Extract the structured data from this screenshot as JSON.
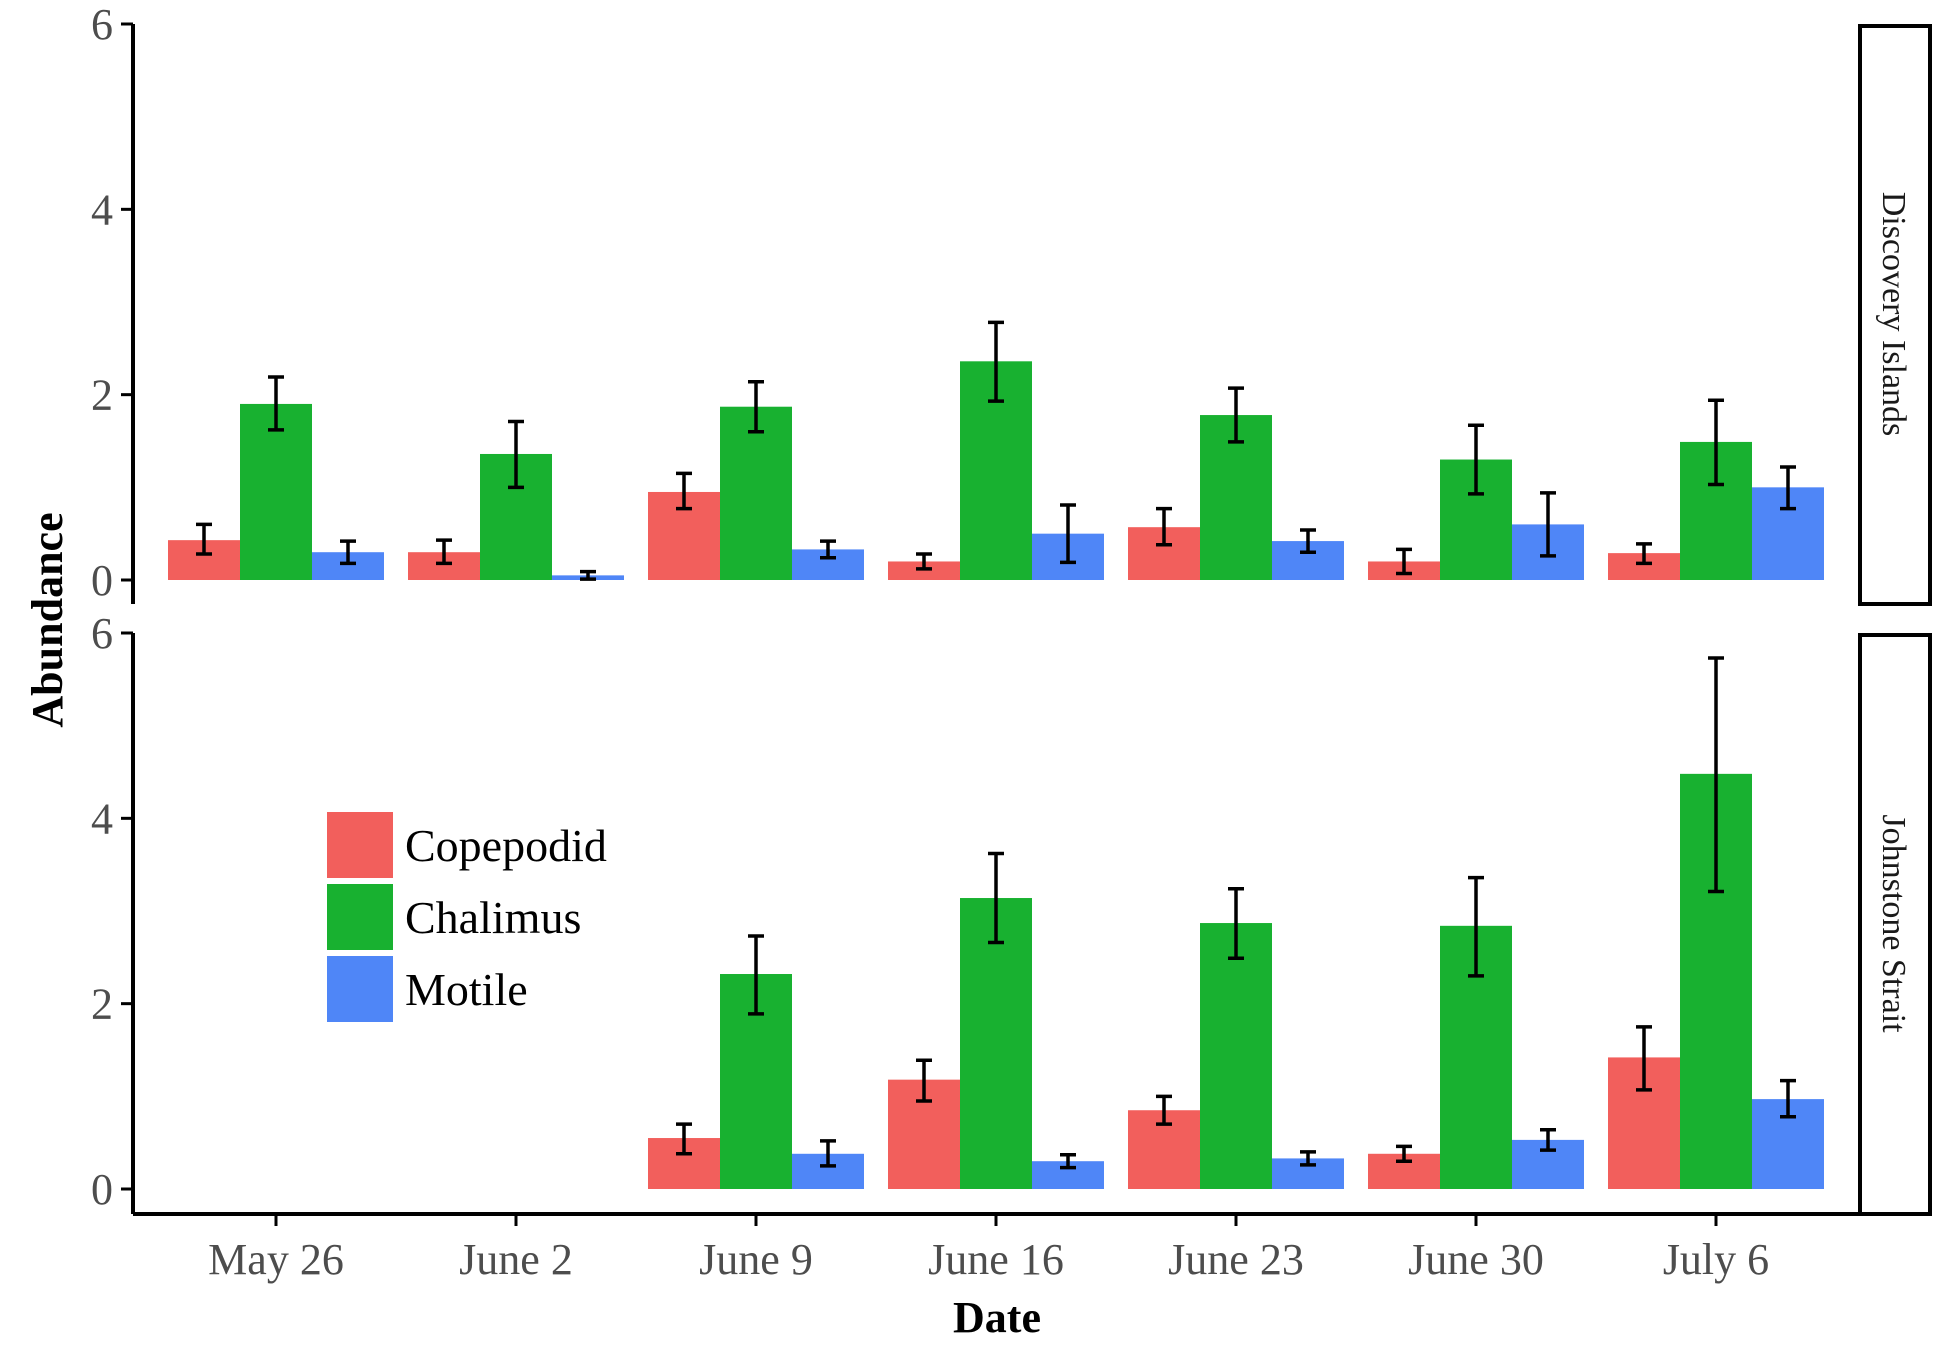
{
  "chart_data": {
    "type": "bar",
    "xlabel": "Date",
    "ylabel": "Abundance",
    "ylim": [
      0,
      6
    ],
    "yticks": [
      "0",
      "2",
      "4",
      "6"
    ],
    "categories": [
      "May 26",
      "June 2",
      "June 9",
      "June 16",
      "June 23",
      "June 30",
      "July 6"
    ],
    "legend": {
      "placement": "inside-lower-panel-left",
      "entries": [
        "Copepodid",
        "Chalimus",
        "Motile"
      ]
    },
    "colors": {
      "Copepodid": "#F25F5C",
      "Chalimus": "#18B130",
      "Motile": "#4F86F7"
    },
    "panels": [
      {
        "label": "Discovery Islands",
        "series": [
          {
            "name": "Copepodid",
            "values": [
              0.43,
              0.3,
              0.95,
              0.2,
              0.57,
              0.2,
              0.29
            ],
            "err_low": [
              0.28,
              0.18,
              0.77,
              0.12,
              0.38,
              0.07,
              0.18
            ],
            "err_high": [
              0.6,
              0.43,
              1.15,
              0.28,
              0.77,
              0.33,
              0.39
            ]
          },
          {
            "name": "Chalimus",
            "values": [
              1.9,
              1.36,
              1.87,
              2.36,
              1.78,
              1.3,
              1.49
            ],
            "err_low": [
              1.62,
              1.0,
              1.6,
              1.93,
              1.49,
              0.93,
              1.03
            ],
            "err_high": [
              2.19,
              1.71,
              2.14,
              2.78,
              2.07,
              1.67,
              1.94
            ]
          },
          {
            "name": "Motile",
            "values": [
              0.3,
              0.05,
              0.33,
              0.5,
              0.42,
              0.6,
              1.0
            ],
            "err_low": [
              0.18,
              0.01,
              0.24,
              0.19,
              0.3,
              0.26,
              0.77
            ],
            "err_high": [
              0.42,
              0.09,
              0.42,
              0.81,
              0.54,
              0.94,
              1.22
            ]
          }
        ]
      },
      {
        "label": "Johnstone Strait",
        "series": [
          {
            "name": "Copepodid",
            "values": [
              null,
              null,
              0.55,
              1.18,
              0.85,
              0.38,
              1.42
            ],
            "err_low": [
              null,
              null,
              0.38,
              0.95,
              0.7,
              0.3,
              1.07
            ],
            "err_high": [
              null,
              null,
              0.7,
              1.39,
              1.0,
              0.46,
              1.75
            ]
          },
          {
            "name": "Chalimus",
            "values": [
              null,
              null,
              2.32,
              3.14,
              2.87,
              2.84,
              4.48
            ],
            "err_low": [
              null,
              null,
              1.89,
              2.66,
              2.49,
              2.3,
              3.21
            ],
            "err_high": [
              null,
              null,
              2.73,
              3.62,
              3.24,
              3.36,
              5.73
            ]
          },
          {
            "name": "Motile",
            "values": [
              null,
              null,
              0.38,
              0.3,
              0.33,
              0.53,
              0.97
            ],
            "err_low": [
              null,
              null,
              0.25,
              0.23,
              0.26,
              0.42,
              0.78
            ],
            "err_high": [
              null,
              null,
              0.52,
              0.37,
              0.4,
              0.64,
              1.17
            ]
          }
        ]
      }
    ]
  }
}
